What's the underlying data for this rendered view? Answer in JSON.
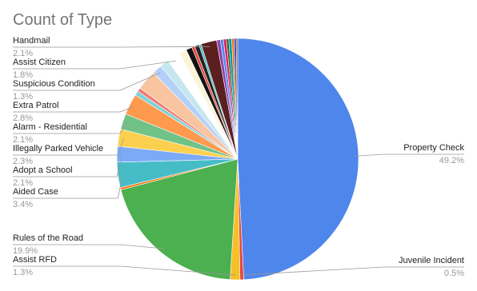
{
  "chart_data": {
    "type": "pie",
    "title": "Count of Type",
    "categories": [
      "Property Check",
      "Juvenile Incident",
      "Assist RFD",
      "Rules of the Road",
      null,
      "Aided Case",
      "Adopt a School",
      "Illegally Parked Vehicle",
      "Alarm - Residential",
      "Extra Patrol",
      null,
      null,
      null,
      "Suspicious Condition",
      null,
      "Assist Citizen",
      null,
      null,
      null,
      null,
      null,
      "Handmail",
      null,
      null,
      null,
      null,
      null,
      null,
      null,
      null
    ],
    "values": [
      49.2,
      0.5,
      1.3,
      19.9,
      0.3,
      3.4,
      2.1,
      2.3,
      2.1,
      2.8,
      0.6,
      0.5,
      2.7,
      1.3,
      1.2,
      1.8,
      1.0,
      0.8,
      0.4,
      0.6,
      0.3,
      2.1,
      0.5,
      0.4,
      0.4,
      0.3,
      0.4,
      0.3,
      0.3,
      0.2
    ],
    "value_labels": [
      "49.2%",
      "0.5%",
      "1.3%",
      "19.9%",
      null,
      "3.4%",
      "2.1%",
      "2.3%",
      "2.1%",
      "2.8%",
      null,
      null,
      null,
      "1.3%",
      null,
      "1.8%",
      null,
      null,
      null,
      null,
      null,
      "2.1%",
      null,
      null,
      null,
      null,
      null,
      null,
      null,
      null
    ],
    "colors": [
      "#4e86ec",
      "#e8453c",
      "#f6c026",
      "#4caf50",
      "#ff6d01",
      "#46bdc6",
      "#7baaf7",
      "#fcd04f",
      "#71c287",
      "#ff994d",
      "#7ed1d7",
      "#f07b72",
      "#f9c4a0",
      "#b3d0f8",
      "#c5e6ee",
      "#ffffff",
      "#fdf3d8",
      "#111111",
      "#e8453c",
      "#222222",
      "#46bdc6",
      "#5c1f1f",
      "#8e44ad",
      "#4e86ec",
      "#e91e63",
      "#1b5e20",
      "#0097a7",
      "#ff6d01",
      "#3f51b5",
      "#795548"
    ]
  }
}
